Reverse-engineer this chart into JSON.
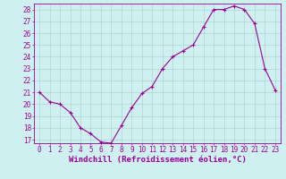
{
  "x": [
    0,
    1,
    2,
    3,
    4,
    5,
    6,
    7,
    8,
    9,
    10,
    11,
    12,
    13,
    14,
    15,
    16,
    17,
    18,
    19,
    20,
    21,
    22,
    23
  ],
  "y": [
    21.0,
    20.2,
    20.0,
    19.3,
    18.0,
    17.5,
    16.8,
    16.7,
    18.2,
    19.7,
    20.9,
    21.5,
    23.0,
    24.0,
    24.5,
    25.0,
    26.5,
    28.0,
    28.0,
    28.3,
    28.0,
    26.8,
    23.0,
    21.2
  ],
  "line_color": "#990099",
  "marker": "+",
  "markersize": 3,
  "linewidth": 0.8,
  "xlabel": "Windchill (Refroidissement éolien,°C)",
  "xlabel_fontsize": 6.5,
  "xtick_labels": [
    "0",
    "1",
    "2",
    "3",
    "4",
    "5",
    "6",
    "7",
    "8",
    "9",
    "10",
    "11",
    "12",
    "13",
    "14",
    "15",
    "16",
    "17",
    "18",
    "19",
    "20",
    "21",
    "22",
    "23"
  ],
  "ytick_min": 17,
  "ytick_max": 28,
  "ytick_step": 1,
  "background_color": "#cff0f0",
  "grid_color": "#aacccc",
  "tick_fontsize": 5.5
}
